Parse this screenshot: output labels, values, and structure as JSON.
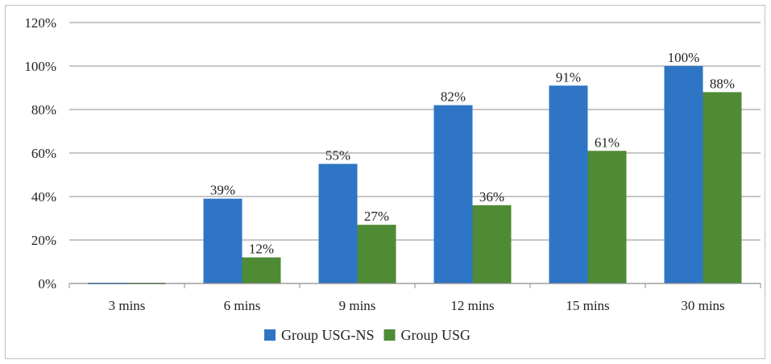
{
  "chart_data": {
    "type": "bar",
    "categories": [
      "3 mins",
      "6 mins",
      "9 mins",
      "12 mins",
      "15 mins",
      "30 mins"
    ],
    "series": [
      {
        "name": "Group USG-NS",
        "color": "#2e75c6",
        "values": [
          0,
          39,
          55,
          82,
          91,
          100
        ],
        "labels": [
          "",
          "39%",
          "55%",
          "82%",
          "91%",
          "100%"
        ]
      },
      {
        "name": "Group USG",
        "color": "#4f8a35",
        "values": [
          0,
          12,
          27,
          36,
          61,
          88
        ],
        "labels": [
          "",
          "12%",
          "27%",
          "36%",
          "61%",
          "88%"
        ]
      }
    ],
    "yticks": [
      "0%",
      "20%",
      "40%",
      "60%",
      "80%",
      "100%",
      "120%"
    ],
    "ylim": [
      0,
      120
    ],
    "grid": true,
    "legend_position": "bottom-center"
  }
}
